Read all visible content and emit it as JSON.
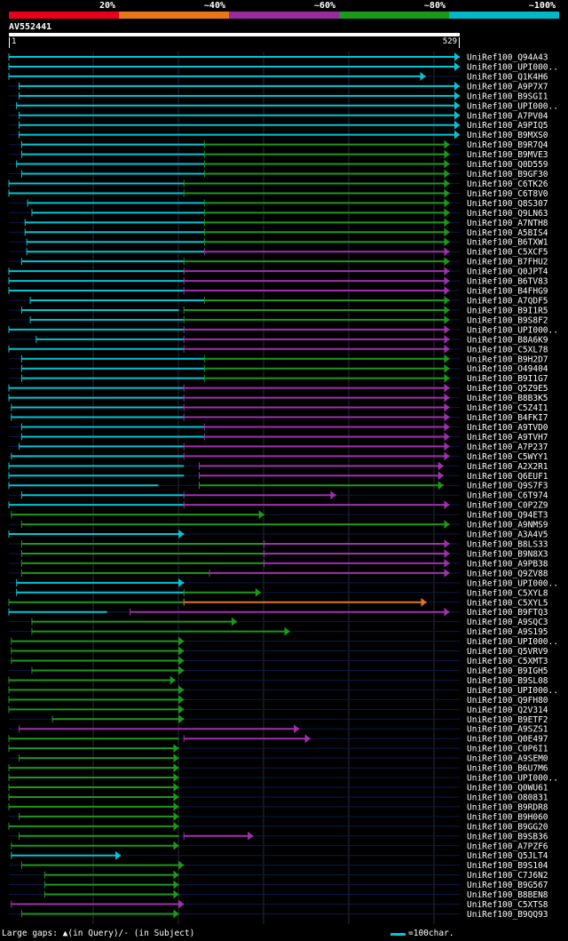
{
  "legend": [
    {
      "label": "20%",
      "color": "#e8001a"
    },
    {
      "label": "~40%",
      "color": "#e87618"
    },
    {
      "label": "~60%",
      "color": "#9a2aa0"
    },
    {
      "label": "~80%",
      "color": "#1a9a1a"
    },
    {
      "label": "~100%",
      "color": "#00b8c8"
    }
  ],
  "query": {
    "name": "AV552441",
    "start": "1",
    "end": "529",
    "length": 529
  },
  "footer": {
    "gaps": "Large gaps: ▲(in Query)/- (in Subject)",
    "scale": "=100char."
  },
  "hits": [
    {
      "name": "UniRef100_Q94A43",
      "segs": [
        [
          1,
          529,
          "c"
        ]
      ]
    },
    {
      "name": "UniRef100_UPI000..",
      "segs": [
        [
          1,
          529,
          "c"
        ]
      ]
    },
    {
      "name": "UniRef100_Q1K4H6",
      "segs": [
        [
          1,
          489,
          "c"
        ]
      ]
    },
    {
      "name": "UniRef100_A9P7X7",
      "segs": [
        [
          13,
          529,
          "c"
        ]
      ]
    },
    {
      "name": "UniRef100_B9SGI1",
      "segs": [
        [
          13,
          529,
          "c"
        ]
      ]
    },
    {
      "name": "UniRef100_UPI000..",
      "segs": [
        [
          10,
          529,
          "c"
        ]
      ]
    },
    {
      "name": "UniRef100_A7PV04",
      "segs": [
        [
          13,
          529,
          "c"
        ]
      ]
    },
    {
      "name": "UniRef100_A9PIQ5",
      "segs": [
        [
          13,
          529,
          "c"
        ]
      ]
    },
    {
      "name": "UniRef100_B9MXS0",
      "segs": [
        [
          13,
          529,
          "c"
        ]
      ]
    },
    {
      "name": "UniRef100_B9R7Q4",
      "segs": [
        [
          16,
          230,
          "c"
        ],
        [
          230,
          517,
          "g"
        ]
      ]
    },
    {
      "name": "UniRef100_B9MVE3",
      "segs": [
        [
          16,
          230,
          "c"
        ],
        [
          230,
          517,
          "g"
        ]
      ]
    },
    {
      "name": "UniRef100_Q0D559",
      "segs": [
        [
          10,
          230,
          "c"
        ],
        [
          230,
          517,
          "g"
        ]
      ]
    },
    {
      "name": "UniRef100_B9GF30",
      "segs": [
        [
          16,
          230,
          "c"
        ],
        [
          230,
          517,
          "g"
        ]
      ]
    },
    {
      "name": "UniRef100_C6TK26",
      "segs": [
        [
          1,
          206,
          "c"
        ],
        [
          206,
          517,
          "g"
        ]
      ]
    },
    {
      "name": "UniRef100_C6T8V0",
      "segs": [
        [
          1,
          206,
          "c"
        ],
        [
          206,
          517,
          "g"
        ]
      ]
    },
    {
      "name": "UniRef100_Q8S307",
      "segs": [
        [
          23,
          230,
          "c"
        ],
        [
          230,
          517,
          "g"
        ]
      ]
    },
    {
      "name": "UniRef100_Q9LN63",
      "segs": [
        [
          28,
          230,
          "c"
        ],
        [
          230,
          517,
          "g"
        ]
      ]
    },
    {
      "name": "UniRef100_A7NTH8",
      "segs": [
        [
          20,
          230,
          "c"
        ],
        [
          230,
          517,
          "g"
        ]
      ]
    },
    {
      "name": "UniRef100_A5BIS4",
      "segs": [
        [
          20,
          230,
          "c"
        ],
        [
          230,
          517,
          "g"
        ]
      ]
    },
    {
      "name": "UniRef100_B6TXW1",
      "segs": [
        [
          22,
          230,
          "c"
        ],
        [
          230,
          517,
          "g"
        ]
      ]
    },
    {
      "name": "UniRef100_C5XCF5",
      "segs": [
        [
          22,
          230,
          "c"
        ],
        [
          230,
          517,
          "p"
        ]
      ]
    },
    {
      "name": "UniRef100_B7FHU2",
      "segs": [
        [
          16,
          206,
          "c"
        ],
        [
          206,
          517,
          "g"
        ]
      ]
    },
    {
      "name": "UniRef100_Q0JPT4",
      "segs": [
        [
          1,
          206,
          "c"
        ],
        [
          206,
          517,
          "p"
        ]
      ]
    },
    {
      "name": "UniRef100_B6TV83",
      "segs": [
        [
          1,
          206,
          "c"
        ],
        [
          206,
          517,
          "p"
        ]
      ]
    },
    {
      "name": "UniRef100_B4FHG9",
      "segs": [
        [
          1,
          206,
          "c"
        ],
        [
          206,
          517,
          "p"
        ]
      ]
    },
    {
      "name": "UniRef100_A7QDF5",
      "segs": [
        [
          26,
          230,
          "c"
        ],
        [
          230,
          517,
          "g"
        ]
      ]
    },
    {
      "name": "UniRef100_B9I1R5",
      "segs": [
        [
          16,
          200,
          "c"
        ],
        [
          206,
          517,
          "g"
        ]
      ]
    },
    {
      "name": "UniRef100_B9S8F2",
      "segs": [
        [
          26,
          206,
          "c"
        ],
        [
          206,
          517,
          "g"
        ]
      ]
    },
    {
      "name": "UniRef100_UPI000..",
      "segs": [
        [
          1,
          206,
          "c"
        ],
        [
          206,
          517,
          "p"
        ]
      ]
    },
    {
      "name": "UniRef100_B8A6K9",
      "segs": [
        [
          33,
          206,
          "c"
        ],
        [
          206,
          517,
          "p"
        ]
      ]
    },
    {
      "name": "UniRef100_C5XL78",
      "segs": [
        [
          1,
          206,
          "c"
        ],
        [
          206,
          517,
          "p"
        ]
      ]
    },
    {
      "name": "UniRef100_B9H2D7",
      "segs": [
        [
          16,
          230,
          "c"
        ],
        [
          230,
          517,
          "g"
        ]
      ]
    },
    {
      "name": "UniRef100_O49404",
      "segs": [
        [
          16,
          230,
          "c"
        ],
        [
          230,
          517,
          "g"
        ]
      ]
    },
    {
      "name": "UniRef100_B9I1G7",
      "segs": [
        [
          16,
          230,
          "c"
        ],
        [
          230,
          517,
          "g"
        ]
      ]
    },
    {
      "name": "UniRef100_Q5Z9E5",
      "segs": [
        [
          1,
          206,
          "c"
        ],
        [
          206,
          517,
          "p"
        ]
      ]
    },
    {
      "name": "UniRef100_B8B3K5",
      "segs": [
        [
          1,
          206,
          "c"
        ],
        [
          206,
          517,
          "p"
        ]
      ]
    },
    {
      "name": "UniRef100_C5Z4I1",
      "segs": [
        [
          4,
          206,
          "c"
        ],
        [
          206,
          517,
          "p"
        ]
      ]
    },
    {
      "name": "UniRef100_B4FKI7",
      "segs": [
        [
          4,
          206,
          "c"
        ],
        [
          206,
          517,
          "p"
        ]
      ]
    },
    {
      "name": "UniRef100_A9TVD0",
      "segs": [
        [
          16,
          230,
          "c"
        ],
        [
          230,
          517,
          "p"
        ]
      ]
    },
    {
      "name": "UniRef100_A9TVH7",
      "segs": [
        [
          16,
          230,
          "c"
        ],
        [
          230,
          517,
          "p"
        ]
      ]
    },
    {
      "name": "UniRef100_A7P237",
      "segs": [
        [
          13,
          206,
          "c"
        ],
        [
          206,
          517,
          "p"
        ]
      ]
    },
    {
      "name": "UniRef100_C5WYY1",
      "segs": [
        [
          4,
          206,
          "c"
        ],
        [
          206,
          517,
          "p"
        ]
      ]
    },
    {
      "name": "UniRef100_A2X2R1",
      "segs": [
        [
          1,
          206,
          "c"
        ],
        [
          224,
          510,
          "p"
        ]
      ]
    },
    {
      "name": "UniRef100_Q6EUF1",
      "segs": [
        [
          1,
          206,
          "c"
        ],
        [
          224,
          510,
          "p"
        ]
      ]
    },
    {
      "name": "UniRef100_Q9S7F3",
      "segs": [
        [
          1,
          176,
          "c"
        ],
        [
          224,
          510,
          "g"
        ]
      ]
    },
    {
      "name": "UniRef100_C6T974",
      "segs": [
        [
          16,
          206,
          "c"
        ],
        [
          206,
          384,
          "p"
        ]
      ]
    },
    {
      "name": "UniRef100_C0P2Z9",
      "segs": [
        [
          1,
          206,
          "c"
        ],
        [
          206,
          517,
          "p"
        ]
      ]
    },
    {
      "name": "UniRef100_Q94ET3",
      "segs": [
        [
          4,
          300,
          "g"
        ]
      ]
    },
    {
      "name": "UniRef100_A9NMS9",
      "segs": [
        [
          16,
          517,
          "g"
        ]
      ]
    },
    {
      "name": "UniRef100_A3A4V5",
      "segs": [
        [
          1,
          206,
          "c"
        ]
      ]
    },
    {
      "name": "UniRef100_B8LS33",
      "segs": [
        [
          16,
          300,
          "g"
        ],
        [
          300,
          517,
          "p"
        ]
      ]
    },
    {
      "name": "UniRef100_B9N8X3",
      "segs": [
        [
          16,
          300,
          "g"
        ],
        [
          300,
          517,
          "p"
        ]
      ]
    },
    {
      "name": "UniRef100_A9PB38",
      "segs": [
        [
          16,
          300,
          "g"
        ],
        [
          300,
          517,
          "p"
        ]
      ]
    },
    {
      "name": "UniRef100_Q9ZV88",
      "segs": [
        [
          16,
          236,
          "g"
        ],
        [
          236,
          517,
          "p"
        ]
      ]
    },
    {
      "name": "UniRef100_UPI000..",
      "segs": [
        [
          10,
          206,
          "c"
        ]
      ]
    },
    {
      "name": "UniRef100_C5XYL8",
      "segs": [
        [
          10,
          206,
          "c"
        ],
        [
          206,
          296,
          "g"
        ]
      ]
    },
    {
      "name": "UniRef100_C5XYL5",
      "segs": [
        [
          1,
          206,
          "g"
        ],
        [
          206,
          490,
          "o"
        ]
      ]
    },
    {
      "name": "UniRef100_B9FTQ3",
      "segs": [
        [
          1,
          116,
          "c"
        ],
        [
          143,
          517,
          "p"
        ]
      ]
    },
    {
      "name": "UniRef100_A9SQC3",
      "segs": [
        [
          28,
          268,
          "g"
        ]
      ]
    },
    {
      "name": "UniRef100_A9S195",
      "segs": [
        [
          28,
          330,
          "g"
        ]
      ]
    },
    {
      "name": "UniRef100_UPI000..",
      "segs": [
        [
          4,
          206,
          "g"
        ]
      ]
    },
    {
      "name": "UniRef100_Q5VRV9",
      "segs": [
        [
          4,
          206,
          "g"
        ]
      ]
    },
    {
      "name": "UniRef100_C5XMT3",
      "segs": [
        [
          4,
          206,
          "g"
        ]
      ]
    },
    {
      "name": "UniRef100_B9IGH5",
      "segs": [
        [
          28,
          206,
          "g"
        ]
      ]
    },
    {
      "name": "UniRef100_B9SL08",
      "segs": [
        [
          1,
          196,
          "g"
        ]
      ]
    },
    {
      "name": "UniRef100_UPI000..",
      "segs": [
        [
          1,
          206,
          "g"
        ]
      ]
    },
    {
      "name": "UniRef100_Q9FH80",
      "segs": [
        [
          1,
          206,
          "g"
        ]
      ]
    },
    {
      "name": "UniRef100_Q2V314",
      "segs": [
        [
          1,
          206,
          "g"
        ]
      ]
    },
    {
      "name": "UniRef100_B9ETF2",
      "segs": [
        [
          52,
          206,
          "g"
        ]
      ]
    },
    {
      "name": "UniRef100_A9SZS1",
      "segs": [
        [
          13,
          341,
          "p"
        ]
      ]
    },
    {
      "name": "UniRef100_Q0E497",
      "segs": [
        [
          1,
          200,
          "g"
        ],
        [
          206,
          354,
          "p"
        ]
      ]
    },
    {
      "name": "UniRef100_C0P6I1",
      "segs": [
        [
          1,
          200,
          "g"
        ]
      ]
    },
    {
      "name": "UniRef100_A9SEM0",
      "segs": [
        [
          13,
          200,
          "g"
        ]
      ]
    },
    {
      "name": "UniRef100_B6U7M6",
      "segs": [
        [
          1,
          200,
          "g"
        ]
      ]
    },
    {
      "name": "UniRef100_UPI000..",
      "segs": [
        [
          1,
          200,
          "g"
        ]
      ]
    },
    {
      "name": "UniRef100_Q0WU61",
      "segs": [
        [
          1,
          200,
          "g"
        ]
      ]
    },
    {
      "name": "UniRef100_O80831",
      "segs": [
        [
          1,
          200,
          "g"
        ]
      ]
    },
    {
      "name": "UniRef100_B9RDR8",
      "segs": [
        [
          1,
          200,
          "g"
        ]
      ]
    },
    {
      "name": "UniRef100_B9H060",
      "segs": [
        [
          13,
          200,
          "g"
        ]
      ]
    },
    {
      "name": "UniRef100_B9GG20",
      "segs": [
        [
          1,
          200,
          "g"
        ]
      ]
    },
    {
      "name": "UniRef100_B9SB36",
      "segs": [
        [
          13,
          200,
          "g"
        ],
        [
          206,
          287,
          "p"
        ]
      ]
    },
    {
      "name": "UniRef100_A7PZF6",
      "segs": [
        [
          4,
          200,
          "g"
        ]
      ]
    },
    {
      "name": "UniRef100_Q5JLT4",
      "segs": [
        [
          4,
          132,
          "c"
        ]
      ]
    },
    {
      "name": "UniRef100_B9S104",
      "segs": [
        [
          16,
          206,
          "g"
        ]
      ]
    },
    {
      "name": "UniRef100_C7J6N2",
      "segs": [
        [
          43,
          200,
          "g"
        ]
      ]
    },
    {
      "name": "UniRef100_B9G567",
      "segs": [
        [
          43,
          200,
          "g"
        ]
      ]
    },
    {
      "name": "UniRef100_B8BEN8",
      "segs": [
        [
          43,
          200,
          "g"
        ]
      ]
    },
    {
      "name": "UniRef100_C5XTS8",
      "segs": [
        [
          4,
          206,
          "p"
        ]
      ]
    },
    {
      "name": "UniRef100_B9QQ93",
      "segs": [
        [
          16,
          200,
          "g"
        ]
      ]
    }
  ]
}
